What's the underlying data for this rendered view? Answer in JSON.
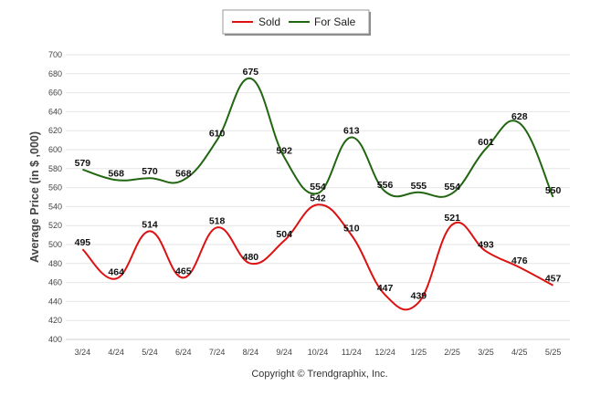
{
  "chart_data": {
    "type": "line",
    "categories": [
      "3/24",
      "4/24",
      "5/24",
      "6/24",
      "7/24",
      "8/24",
      "9/24",
      "10/24",
      "11/24",
      "12/24",
      "1/25",
      "2/25",
      "3/25",
      "4/25",
      "5/25"
    ],
    "series": [
      {
        "name": "Sold",
        "color": "#dd1111",
        "values": [
          495,
          464,
          514,
          465,
          518,
          480,
          504,
          542,
          510,
          447,
          439,
          521,
          493,
          476,
          457
        ]
      },
      {
        "name": "For Sale",
        "color": "#226611",
        "values": [
          579,
          568,
          570,
          568,
          610,
          675,
          592,
          554,
          613,
          556,
          555,
          554,
          601,
          628,
          550
        ]
      }
    ],
    "ylabel": "Average Price (in $ ,000)",
    "xlabel": "",
    "ylim": [
      400,
      700
    ],
    "yticks": [
      400,
      420,
      440,
      460,
      480,
      500,
      520,
      540,
      560,
      580,
      600,
      620,
      640,
      660,
      680,
      700
    ],
    "grid": true,
    "legend": "top-center",
    "smooth": true
  },
  "footer": {
    "copyright": "Copyright © Trendgraphix, Inc."
  }
}
